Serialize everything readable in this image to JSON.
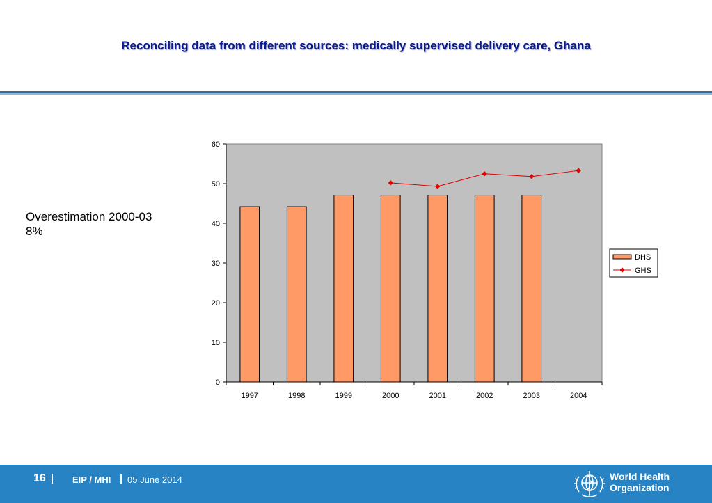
{
  "slide": {
    "title": "Reconciling data from different sources: medically supervised delivery care, Ghana",
    "note_line1": "Overestimation 2000-03",
    "note_line2": "8%"
  },
  "footer": {
    "page_number": "16",
    "unit": "EIP / MHI",
    "date": "05 June 2014",
    "org_line1": "World Health",
    "org_line2": "Organization",
    "background_color": "#2783c3"
  },
  "chart_data": {
    "type": "bar",
    "categories": [
      "1997",
      "1998",
      "1999",
      "2000",
      "2001",
      "2002",
      "2003",
      "2004"
    ],
    "series": [
      {
        "name": "DHS",
        "type": "bar",
        "values": [
          44.2,
          44.2,
          47.1,
          47.1,
          47.1,
          47.1,
          47.1,
          null
        ],
        "color": "#ff9966"
      },
      {
        "name": "GHS",
        "type": "line",
        "values": [
          null,
          null,
          null,
          50.2,
          49.3,
          52.5,
          51.8,
          53.3
        ],
        "color": "#e00000"
      }
    ],
    "ylim": [
      0,
      60
    ],
    "yticks": [
      0,
      10,
      20,
      30,
      40,
      50,
      60
    ],
    "plot_background": "#c0c0c0",
    "legend": "right",
    "grid": false
  }
}
